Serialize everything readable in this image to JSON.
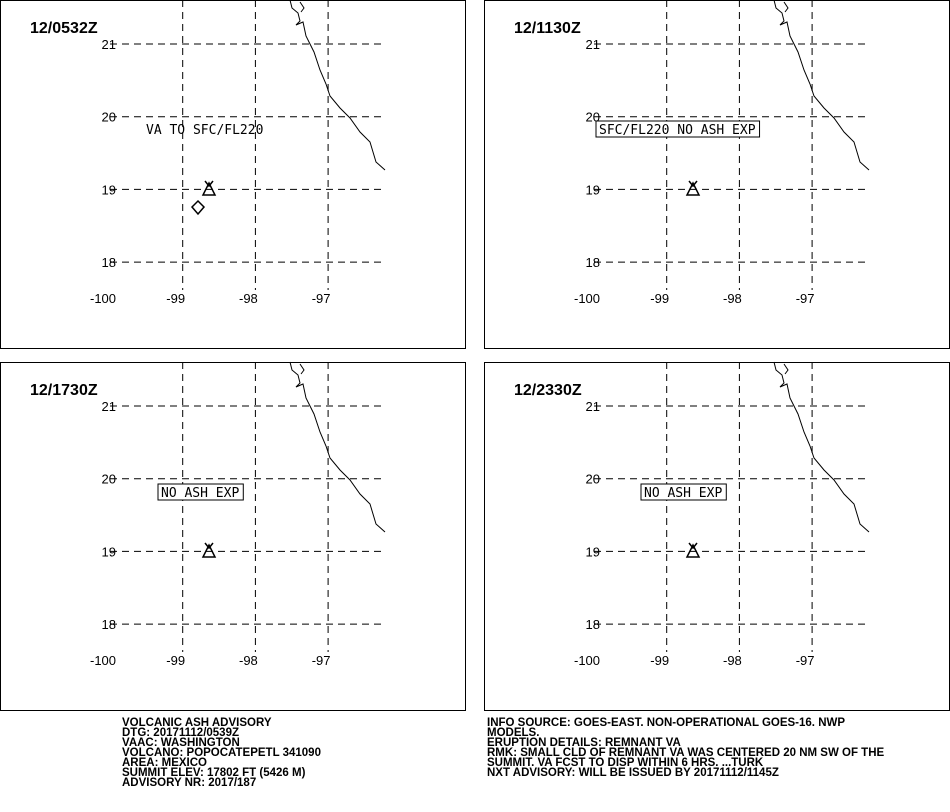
{
  "panels": [
    {
      "time": "12/0532Z",
      "annotation": "VA TO SFC/FL220"
    },
    {
      "time": "12/1130Z",
      "annotation": "SFC/FL220 NO ASH EXP"
    },
    {
      "time": "12/1730Z",
      "annotation": "NO ASH EXP"
    },
    {
      "time": "12/2330Z",
      "annotation": "NO ASH EXP"
    }
  ],
  "lat_ticks": [
    21,
    20,
    19,
    18
  ],
  "lon_ticks": [
    -100,
    -99,
    -98,
    -97
  ],
  "advisory_left": [
    "VOLCANIC ASH ADVISORY",
    "DTG: 20171112/0539Z",
    "VAAC: WASHINGTON",
    "VOLCANO: POPOCATEPETL 341090",
    "AREA: MEXICO",
    "SUMMIT ELEV: 17802 FT (5426 M)",
    "ADVISORY NR: 2017/187"
  ],
  "advisory_right": [
    "INFO SOURCE: GOES-EAST. NON-OPERATIONAL GOES-16. NWP",
    "MODELS.",
    "ERUPTION DETAILS: REMNANT VA",
    "RMK: SMALL CLD OF REMNANT VA WAS CENTERED 20 NM SW OF THE",
    "SUMMIT. VA FCST TO DISP WITHIN 6 HRS. ...TURK",
    "NXT ADVISORY: WILL BE ISSUED BY 20171112/1145Z"
  ]
}
